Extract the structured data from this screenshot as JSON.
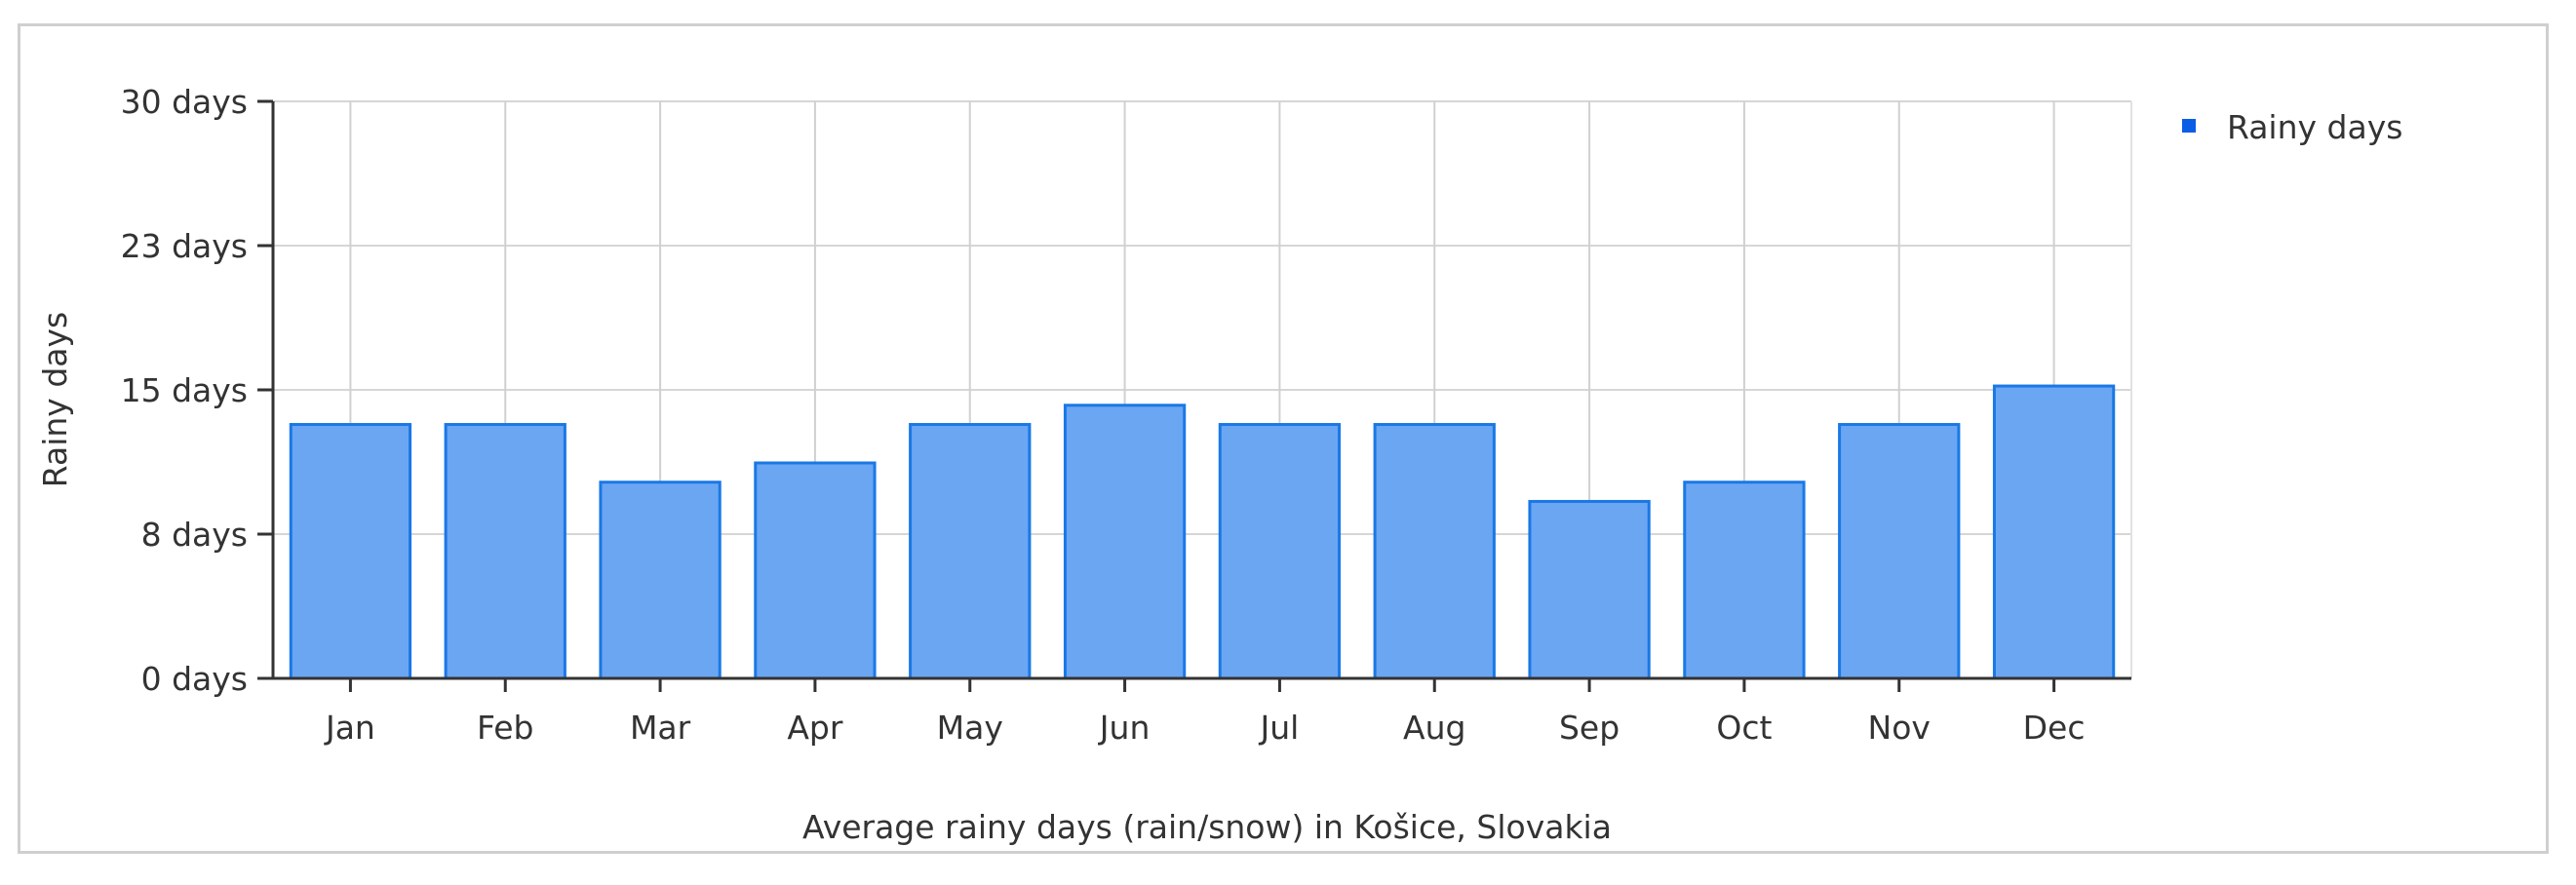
{
  "chart_data": {
    "type": "bar",
    "categories": [
      "Jan",
      "Feb",
      "Mar",
      "Apr",
      "May",
      "Jun",
      "Jul",
      "Aug",
      "Sep",
      "Oct",
      "Nov",
      "Dec"
    ],
    "series": [
      {
        "name": "Rainy days",
        "values": [
          13.2,
          13.2,
          10.2,
          11.2,
          13.2,
          14.2,
          13.2,
          13.2,
          9.2,
          10.2,
          13.2,
          15.2
        ],
        "color": "#6ba6f2",
        "stroke": "#1a78e6"
      }
    ],
    "ylim": [
      0,
      30
    ],
    "yticks": [
      {
        "value": 0,
        "label": "0 days"
      },
      {
        "value": 7.5,
        "label": "8 days"
      },
      {
        "value": 15,
        "label": "15 days"
      },
      {
        "value": 22.5,
        "label": "23 days"
      },
      {
        "value": 30,
        "label": "30 days"
      }
    ],
    "ylabel": "Rainy days",
    "xlabel": "Average rainy days (rain/snow) in Košice, Slovakia",
    "grid": true,
    "legend": {
      "position": "top-right",
      "marker_color": "#0a5ee6"
    }
  }
}
